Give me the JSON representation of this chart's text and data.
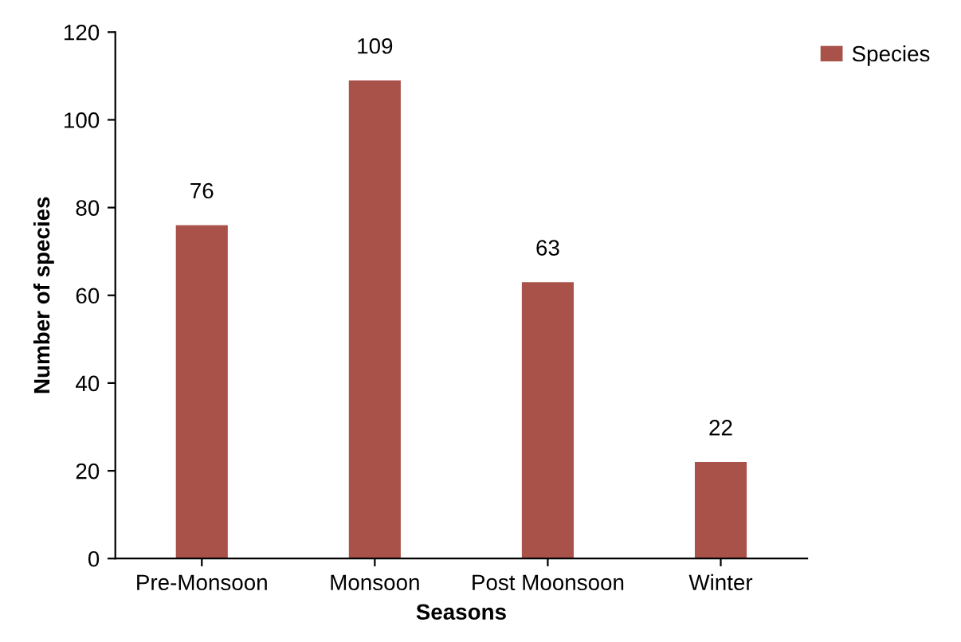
{
  "chart_data": {
    "type": "bar",
    "xlabel": "Seasons",
    "ylabel": "Number of species",
    "categories": [
      "Pre-Monsoon",
      "Monsoon",
      "Post Moonsoon",
      "Winter"
    ],
    "series": [
      {
        "name": "Species",
        "color": "#a9524a",
        "values": [
          76,
          109,
          63,
          22
        ]
      }
    ],
    "ylim": [
      0,
      120
    ],
    "yticks": [
      0,
      20,
      40,
      60,
      80,
      100,
      120
    ],
    "data_labels": true,
    "legend": "top right",
    "grid": false
  }
}
